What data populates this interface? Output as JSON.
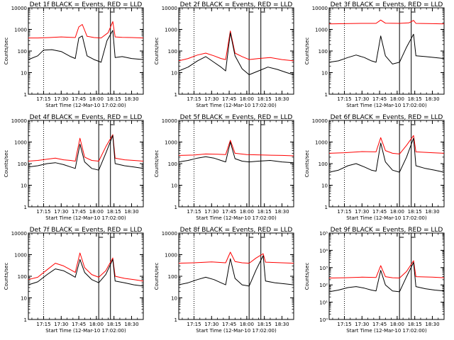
{
  "figure": {
    "background": "#ffffff",
    "black_color": "#000000",
    "red_color": "#ff0000"
  },
  "chart_data": [
    {
      "type": "line",
      "title": "Det 1f BLACK = Events, RED = LLD",
      "xlabel": "Start Time (12-Mar-10 17:02:00)",
      "ylabel": "Counts/sec",
      "ylog": true,
      "ylim": [
        1,
        10000
      ],
      "ytick_labels": [
        "1",
        "10",
        "100",
        "1000",
        "10000"
      ],
      "xlim": [
        "17:02",
        "18:40"
      ],
      "xtick_labels": [
        "17:15",
        "17:30",
        "17:45",
        "18:00",
        "18:15",
        "18:30"
      ],
      "vlines": {
        "dotted": [
          "17:15"
        ],
        "solid": [
          "18:02",
          "18:12"
        ]
      },
      "series": [
        {
          "color": "black",
          "x": [
            "17:02",
            "17:10",
            "17:15",
            "17:22",
            "17:30",
            "17:38",
            "17:42",
            "17:45",
            "17:48",
            "17:52",
            "17:58",
            "18:01",
            "18:04",
            "18:09",
            "18:14",
            "18:16",
            "18:22",
            "18:30",
            "18:40"
          ],
          "values": [
            40,
            60,
            110,
            115,
            95,
            55,
            45,
            400,
            500,
            60,
            40,
            35,
            30,
            300,
            900,
            50,
            55,
            45,
            40
          ]
        },
        {
          "color": "red",
          "x": [
            "17:02",
            "17:10",
            "17:20",
            "17:30",
            "17:38",
            "17:42",
            "17:45",
            "17:48",
            "17:52",
            "17:58",
            "18:04",
            "18:10",
            "18:14",
            "18:16",
            "18:22",
            "18:30",
            "18:40"
          ],
          "values": [
            400,
            400,
            420,
            450,
            430,
            420,
            1300,
            1700,
            480,
            420,
            400,
            700,
            2300,
            450,
            430,
            420,
            400
          ]
        }
      ]
    },
    {
      "type": "line",
      "title": "Det 2f BLACK = Events, RED = LLD",
      "xlabel": "Start Time (12-Mar-10 17:02:00)",
      "ylabel": "Counts/sec",
      "ylog": true,
      "ylim": [
        1,
        10000
      ],
      "ytick_labels": [
        "1",
        "10",
        "100",
        "1000",
        "10000"
      ],
      "xlim": [
        "17:02",
        "18:40"
      ],
      "xtick_labels": [
        "17:15",
        "17:30",
        "17:45",
        "18:00",
        "18:15",
        "18:30"
      ],
      "vlines": {
        "dotted": [
          "17:15"
        ],
        "solid": [
          "18:02",
          "18:12"
        ]
      },
      "series": [
        {
          "color": "black",
          "x": [
            "17:02",
            "17:10",
            "17:18",
            "17:25",
            "17:32",
            "17:38",
            "17:42",
            "17:46",
            "17:50",
            "17:56",
            "18:02",
            "18:10",
            "18:18",
            "18:26",
            "18:34",
            "18:40"
          ],
          "values": [
            12,
            18,
            35,
            55,
            30,
            18,
            12,
            700,
            60,
            15,
            8,
            12,
            18,
            14,
            10,
            8
          ]
        },
        {
          "color": "red",
          "x": [
            "17:02",
            "17:10",
            "17:18",
            "17:25",
            "17:32",
            "17:38",
            "17:42",
            "17:46",
            "17:50",
            "17:56",
            "18:02",
            "18:10",
            "18:20",
            "18:30",
            "18:40"
          ],
          "values": [
            35,
            45,
            65,
            80,
            60,
            45,
            40,
            850,
            80,
            55,
            40,
            45,
            50,
            40,
            35
          ]
        }
      ]
    },
    {
      "type": "line",
      "title": "Det 3f BLACK = Events, RED = LLD",
      "xlabel": "Start Time (12-Mar-10 17:02:00)",
      "ylabel": "Counts/sec",
      "ylog": true,
      "ylim": [
        1,
        10000
      ],
      "ytick_labels": [
        "1",
        "10",
        "100",
        "1000",
        "10000"
      ],
      "xlim": [
        "17:02",
        "18:40"
      ],
      "xtick_labels": [
        "17:15",
        "17:30",
        "17:45",
        "18:00",
        "18:15",
        "18:30"
      ],
      "vlines": {
        "dotted": [
          "17:15"
        ],
        "solid": [
          "18:02",
          "18:12"
        ]
      },
      "series": [
        {
          "color": "black",
          "x": [
            "17:02",
            "17:10",
            "17:18",
            "17:25",
            "17:32",
            "17:38",
            "17:42",
            "17:46",
            "17:50",
            "17:56",
            "18:02",
            "18:08",
            "18:14",
            "18:16",
            "18:24",
            "18:32",
            "18:40"
          ],
          "values": [
            30,
            35,
            50,
            65,
            50,
            35,
            30,
            500,
            60,
            25,
            30,
            150,
            600,
            60,
            55,
            50,
            45
          ]
        },
        {
          "color": "red",
          "x": [
            "17:02",
            "17:15",
            "17:30",
            "17:42",
            "17:46",
            "17:50",
            "18:02",
            "18:10",
            "18:14",
            "18:16",
            "18:30",
            "18:40"
          ],
          "values": [
            1800,
            1850,
            1900,
            1900,
            2700,
            1950,
            1900,
            2000,
            2600,
            1900,
            1850,
            1800
          ]
        }
      ]
    },
    {
      "type": "line",
      "title": "Det 4f BLACK = Events, RED = LLD",
      "xlabel": "Start Time (12-Mar-10 17:02:00)",
      "ylabel": "Counts/sec",
      "ylog": true,
      "ylim": [
        1,
        10000
      ],
      "ytick_labels": [
        "1",
        "10",
        "100",
        "1000",
        "10000"
      ],
      "xlim": [
        "17:02",
        "18:40"
      ],
      "xtick_labels": [
        "17:15",
        "17:30",
        "17:45",
        "18:00",
        "18:15",
        "18:30"
      ],
      "vlines": {
        "dotted": [
          "17:15"
        ],
        "solid": [
          "18:02",
          "18:12"
        ]
      },
      "series": [
        {
          "color": "black",
          "x": [
            "17:02",
            "17:10",
            "17:18",
            "17:25",
            "17:32",
            "17:38",
            "17:42",
            "17:46",
            "17:50",
            "17:56",
            "18:02",
            "18:08",
            "18:14",
            "18:16",
            "18:24",
            "18:32",
            "18:40"
          ],
          "values": [
            70,
            80,
            100,
            110,
            90,
            70,
            60,
            800,
            120,
            60,
            50,
            300,
            2000,
            100,
            80,
            70,
            60
          ]
        },
        {
          "color": "red",
          "x": [
            "17:02",
            "17:10",
            "17:18",
            "17:25",
            "17:32",
            "17:38",
            "17:42",
            "17:46",
            "17:50",
            "17:56",
            "18:02",
            "18:08",
            "18:14",
            "18:16",
            "18:24",
            "18:32",
            "18:40"
          ],
          "values": [
            130,
            140,
            160,
            180,
            150,
            140,
            130,
            1500,
            200,
            140,
            130,
            600,
            2200,
            180,
            150,
            140,
            130
          ]
        }
      ]
    },
    {
      "type": "line",
      "title": "Det 5f BLACK = Events, RED = LLD",
      "xlabel": "Start Time (12-Mar-10 17:02:00)",
      "ylabel": "Counts/sec",
      "ylog": true,
      "ylim": [
        1,
        10000
      ],
      "ytick_labels": [
        "1",
        "10",
        "100",
        "1000",
        "10000"
      ],
      "xlim": [
        "17:02",
        "18:40"
      ],
      "xtick_labels": [
        "17:15",
        "17:30",
        "17:45",
        "18:00",
        "18:15",
        "18:30"
      ],
      "vlines": {
        "dotted": [
          "17:15"
        ],
        "solid": [
          "18:02",
          "18:12"
        ]
      },
      "series": [
        {
          "color": "black",
          "x": [
            "17:02",
            "17:10",
            "17:18",
            "17:25",
            "17:32",
            "17:38",
            "17:42",
            "17:46",
            "17:50",
            "17:56",
            "18:02",
            "18:10",
            "18:20",
            "18:30",
            "18:40"
          ],
          "values": [
            120,
            140,
            180,
            210,
            180,
            140,
            120,
            1000,
            170,
            130,
            120,
            130,
            140,
            120,
            110
          ]
        },
        {
          "color": "red",
          "x": [
            "17:02",
            "17:15",
            "17:25",
            "17:35",
            "17:42",
            "17:46",
            "17:50",
            "18:00",
            "18:15",
            "18:30",
            "18:40"
          ],
          "values": [
            240,
            250,
            280,
            270,
            260,
            1200,
            300,
            260,
            250,
            240,
            230
          ]
        }
      ]
    },
    {
      "type": "line",
      "title": "Det 6f BLACK = Events, RED = LLD",
      "xlabel": "Start Time (12-Mar-10 17:02:00)",
      "ylabel": "Counts/sec",
      "ylog": true,
      "ylim": [
        1,
        10000
      ],
      "ytick_labels": [
        "1",
        "10",
        "100",
        "1000",
        "10000"
      ],
      "xlim": [
        "17:02",
        "18:40"
      ],
      "xtick_labels": [
        "17:15",
        "17:30",
        "17:45",
        "18:00",
        "18:15",
        "18:30"
      ],
      "vlines": {
        "dotted": [
          "17:15"
        ],
        "solid": [
          "18:02",
          "18:12"
        ]
      },
      "series": [
        {
          "color": "black",
          "x": [
            "17:02",
            "17:10",
            "17:18",
            "17:25",
            "17:32",
            "17:38",
            "17:42",
            "17:46",
            "17:50",
            "17:56",
            "18:02",
            "18:08",
            "18:14",
            "18:16",
            "18:24",
            "18:32",
            "18:40"
          ],
          "values": [
            40,
            50,
            80,
            100,
            70,
            50,
            45,
            900,
            120,
            50,
            40,
            200,
            1500,
            80,
            60,
            50,
            40
          ]
        },
        {
          "color": "red",
          "x": [
            "17:02",
            "17:15",
            "17:30",
            "17:42",
            "17:46",
            "17:50",
            "17:56",
            "18:02",
            "18:08",
            "18:14",
            "18:16",
            "18:30",
            "18:40"
          ],
          "values": [
            300,
            320,
            360,
            350,
            1600,
            400,
            300,
            280,
            700,
            2000,
            350,
            320,
            300
          ]
        }
      ]
    },
    {
      "type": "line",
      "title": "Det 7f BLACK = Events, RED = LLD",
      "xlabel": "Start Time (12-Mar-10 17:02:00)",
      "ylabel": "Counts/sec",
      "ylog": true,
      "ylim": [
        1,
        10000
      ],
      "ytick_labels": [
        "1",
        "10",
        "100",
        "1000",
        "10000"
      ],
      "xlim": [
        "17:02",
        "18:40"
      ],
      "xtick_labels": [
        "17:15",
        "17:30",
        "17:45",
        "18:00",
        "18:15",
        "18:30"
      ],
      "vlines": {
        "dotted": [
          "17:15"
        ],
        "solid": [
          "18:02",
          "18:12"
        ]
      },
      "series": [
        {
          "color": "black",
          "x": [
            "17:02",
            "17:10",
            "17:18",
            "17:25",
            "17:32",
            "17:38",
            "17:42",
            "17:46",
            "17:50",
            "17:56",
            "18:02",
            "18:08",
            "18:14",
            "18:16",
            "18:24",
            "18:32",
            "18:40"
          ],
          "values": [
            40,
            55,
            120,
            220,
            180,
            120,
            90,
            600,
            150,
            70,
            50,
            120,
            600,
            60,
            50,
            40,
            35
          ]
        },
        {
          "color": "red",
          "x": [
            "17:02",
            "17:10",
            "17:18",
            "17:25",
            "17:32",
            "17:38",
            "17:42",
            "17:46",
            "17:50",
            "17:56",
            "18:02",
            "18:08",
            "18:14",
            "18:16",
            "18:24",
            "18:32",
            "18:40"
          ],
          "values": [
            70,
            90,
            200,
            400,
            300,
            200,
            150,
            1200,
            250,
            120,
            90,
            180,
            700,
            100,
            80,
            70,
            60
          ]
        }
      ]
    },
    {
      "type": "line",
      "title": "Det 8f BLACK = Events, RED = LLD",
      "xlabel": "Start Time (12-Mar-10 17:02:00)",
      "ylabel": "Counts/sec",
      "ylog": true,
      "ylim": [
        1,
        10000
      ],
      "ytick_labels": [
        "1",
        "10",
        "100",
        "1000",
        "10000"
      ],
      "xlim": [
        "17:02",
        "18:40"
      ],
      "xtick_labels": [
        "17:15",
        "17:30",
        "17:45",
        "18:00",
        "18:15",
        "18:30"
      ],
      "vlines": {
        "dotted": [
          "17:15"
        ],
        "solid": [
          "18:02",
          "18:12"
        ]
      },
      "series": [
        {
          "color": "black",
          "x": [
            "17:02",
            "17:10",
            "17:18",
            "17:25",
            "17:32",
            "17:38",
            "17:42",
            "17:46",
            "17:50",
            "17:56",
            "18:02",
            "18:08",
            "18:14",
            "18:16",
            "18:24",
            "18:32",
            "18:40"
          ],
          "values": [
            40,
            50,
            70,
            90,
            70,
            50,
            40,
            650,
            80,
            40,
            35,
            200,
            900,
            60,
            50,
            45,
            40
          ]
        },
        {
          "color": "red",
          "x": [
            "17:02",
            "17:15",
            "17:30",
            "17:42",
            "17:46",
            "17:50",
            "17:56",
            "18:02",
            "18:08",
            "18:14",
            "18:16",
            "18:30",
            "18:40"
          ],
          "values": [
            400,
            420,
            460,
            420,
            1300,
            480,
            420,
            400,
            700,
            1100,
            450,
            420,
            400
          ]
        }
      ]
    },
    {
      "type": "line",
      "title": "Det 9f BLACK = Events, RED = LLD",
      "xlabel": "Start Time (12-Mar-10 17:02:00)",
      "ylabel": "Counts/sec",
      "ylog": true,
      "ylim": [
        1,
        100000
      ],
      "ytick_labels": [
        "10⁰",
        "10¹",
        "10²",
        "10³",
        "10⁴",
        "10⁵"
      ],
      "xlim": [
        "17:02",
        "18:40"
      ],
      "xtick_labels": [
        "17:15",
        "17:30",
        "17:45",
        "18:00",
        "18:15",
        "18:30"
      ],
      "vlines": {
        "dotted": [
          "17:15"
        ],
        "solid": [
          "18:02",
          "18:12"
        ]
      },
      "series": [
        {
          "color": "black",
          "x": [
            "17:02",
            "17:10",
            "17:18",
            "17:25",
            "17:32",
            "17:38",
            "17:42",
            "17:46",
            "17:50",
            "17:56",
            "18:02",
            "18:08",
            "18:14",
            "18:16",
            "18:24",
            "18:32",
            "18:40"
          ],
          "values": [
            40,
            50,
            70,
            80,
            65,
            50,
            45,
            700,
            100,
            45,
            40,
            300,
            2000,
            80,
            60,
            50,
            45
          ]
        },
        {
          "color": "red",
          "x": [
            "17:02",
            "17:15",
            "17:30",
            "17:42",
            "17:46",
            "17:50",
            "17:56",
            "18:02",
            "18:08",
            "18:14",
            "18:16",
            "18:30",
            "18:40"
          ],
          "values": [
            250,
            260,
            280,
            270,
            1300,
            300,
            260,
            250,
            600,
            2500,
            300,
            280,
            260
          ]
        }
      ]
    }
  ]
}
